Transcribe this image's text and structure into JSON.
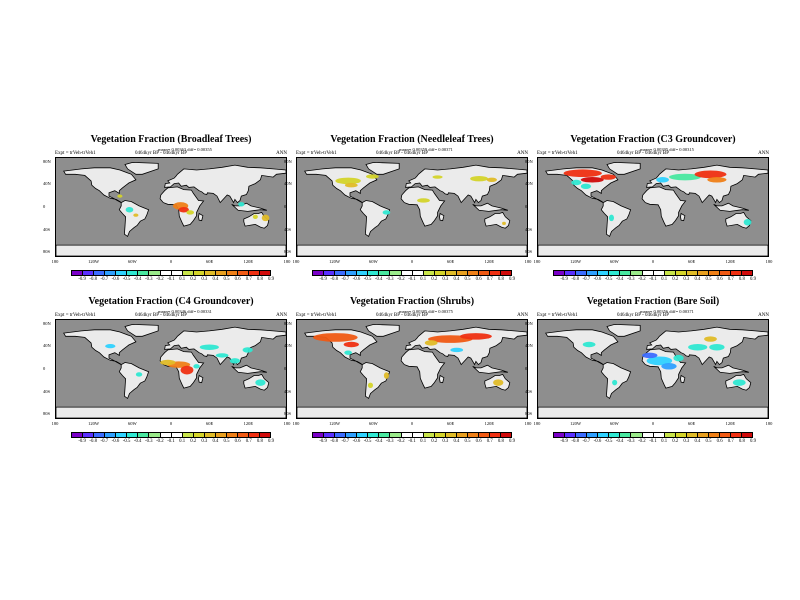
{
  "panels": [
    {
      "title": "Vegetation Fraction (Broadleaf Trees)",
      "stats": "mean= 0.00363 diff= 0.00355",
      "expt": "Expt = trVeh-trVeh1",
      "period": "0464kyr BP - 0464kyr BP",
      "season": "ANN",
      "key": "broadleaf",
      "ticks": [
        "-0.9",
        "-0.8",
        "-0.7",
        "-0.6",
        "-0.5",
        "-0.4",
        "-0.3",
        "-0.2",
        "-0.1",
        "0.1",
        "0.2",
        "0.3",
        "0.4",
        "0.5",
        "0.6",
        "0.7",
        "0.8",
        "0.9"
      ]
    },
    {
      "title": "Vegetation Fraction (Needleleaf Trees)",
      "stats": "mean= 0.00359 diff= 0.00371",
      "expt": "Expt = trVeh-trVeh1",
      "period": "0464kyr BP - 0464kyr BP",
      "season": "ANN",
      "key": "needleleaf",
      "ticks": [
        "-0.9",
        "-0.8",
        "-0.7",
        "-0.6",
        "-0.5",
        "-0.4",
        "-0.3",
        "-0.2",
        "-0.1",
        "0.1",
        "0.2",
        "0.3",
        "0.4",
        "0.5",
        "0.6",
        "0.7",
        "0.8",
        "0.9"
      ]
    },
    {
      "title": "Vegetation Fraction (C3 Groundcover)",
      "stats": "mean= 0.00395 diff= 0.00315",
      "expt": "Expt = trVeh-trVeh1",
      "period": "0464kyr BP - 0464kyr BP",
      "season": "ANN",
      "key": "c3",
      "ticks": [
        "-0.9",
        "-0.8",
        "-0.7",
        "-0.6",
        "-0.5",
        "-0.4",
        "-0.3",
        "-0.2",
        "-0.1",
        "0.1",
        "0.2",
        "0.3",
        "0.4",
        "0.5",
        "0.6",
        "0.7",
        "0.8",
        "0.9"
      ]
    },
    {
      "title": "Vegetation Fraction (C4 Groundcover)",
      "stats": "mean= 0.00346 diff= 0.00331",
      "expt": "Expt = trVeh-trVeh1",
      "period": "0464kyr BP - 0464kyr BP",
      "season": "ANN",
      "key": "c4",
      "ticks": [
        "-0.9",
        "-0.8",
        "-0.7",
        "-0.6",
        "-0.5",
        "-0.4",
        "-0.3",
        "-0.2",
        "-0.1",
        "0.1",
        "0.2",
        "0.3",
        "0.4",
        "0.5",
        "0.6",
        "0.7",
        "0.8",
        "0.9"
      ]
    },
    {
      "title": "Vegetation Fraction (Shrubs)",
      "stats": "mean= 0.00385 diff= 0.00375",
      "expt": "Expt = trVeh-trVeh1",
      "period": "0464kyr BP - 0464kyr BP",
      "season": "ANN",
      "key": "shrubs",
      "ticks": [
        "-0.9",
        "-0.8",
        "-0.7",
        "-0.6",
        "-0.5",
        "-0.4",
        "-0.3",
        "-0.2",
        "-0.1",
        "0.1",
        "0.2",
        "0.3",
        "0.4",
        "0.5",
        "0.6",
        "0.7",
        "0.8",
        "0.9"
      ]
    },
    {
      "title": "Vegetation Fraction (Bare Soil)",
      "stats": "mean= 0.00356 diff= 0.00371",
      "expt": "Expt = trVeh-trVeh1",
      "period": "0464kyr BP - 0464kyr BP",
      "season": "ANN",
      "key": "bare",
      "ticks": [
        "-0.9",
        "-0.8",
        "-0.7",
        "-0.6",
        "-0.5",
        "-0.4",
        "-0.3",
        "-0.2",
        "-0.1",
        "0.1",
        "0.2",
        "0.3",
        "0.4",
        "0.5",
        "0.6",
        "0.7",
        "0.8",
        "0.9"
      ]
    }
  ],
  "lat_labels": [
    "80N",
    "40N",
    "0",
    "40S",
    "80S"
  ],
  "lon_labels": [
    "180",
    "120W",
    "60W",
    "0",
    "60E",
    "120E",
    "180"
  ],
  "colorbar_colors": [
    "#7a00c8",
    "#5a2fff",
    "#3c6cff",
    "#2fa0ff",
    "#2fd2ff",
    "#2fe8d2",
    "#49e8a0",
    "#9aea8a",
    "#ffffff",
    "#ffffff",
    "#c8e44a",
    "#d4d42a",
    "#e0bc28",
    "#e8a020",
    "#ef8018",
    "#f05a14",
    "#ef3012",
    "#d00a0a"
  ]
}
